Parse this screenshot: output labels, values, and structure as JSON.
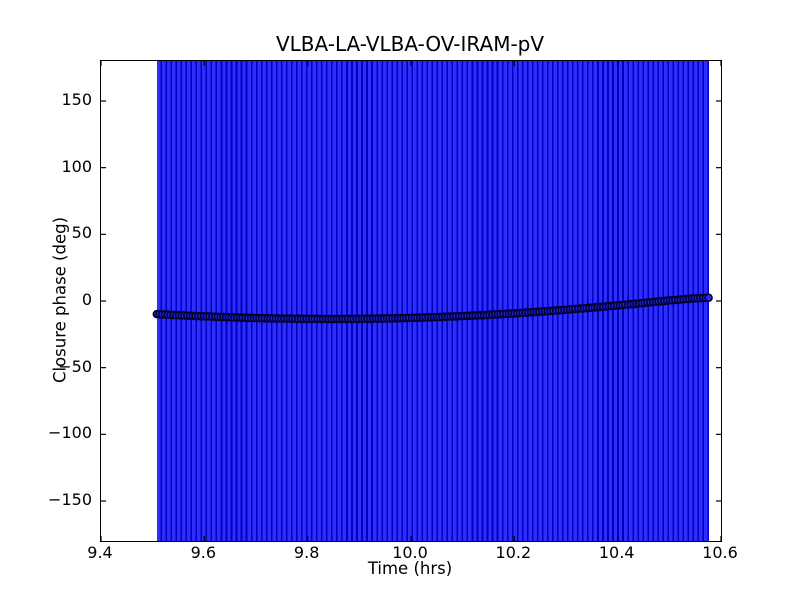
{
  "chart_data": {
    "type": "scatter",
    "title": "VLBA-LA-VLBA-OV-IRAM-pV",
    "xlabel": "Time (hrs)",
    "ylabel": "Closure phase (deg)",
    "xlim": [
      9.4,
      10.6
    ],
    "ylim": [
      -180,
      180
    ],
    "grid": false,
    "legend": null,
    "xticks": [
      {
        "v": 9.4,
        "label": "9.4"
      },
      {
        "v": 9.6,
        "label": "9.6"
      },
      {
        "v": 9.8,
        "label": "9.8"
      },
      {
        "v": 10.0,
        "label": "10.0"
      },
      {
        "v": 10.2,
        "label": "10.2"
      },
      {
        "v": 10.4,
        "label": "10.4"
      },
      {
        "v": 10.6,
        "label": "10.6"
      }
    ],
    "yticks": [
      {
        "v": -150,
        "label": "−150"
      },
      {
        "v": -100,
        "label": "−100"
      },
      {
        "v": -50,
        "label": "−50"
      },
      {
        "v": 0,
        "label": "0"
      },
      {
        "v": 50,
        "label": "50"
      },
      {
        "v": 100,
        "label": "100"
      },
      {
        "v": 150,
        "label": "150"
      }
    ],
    "errorbars": {
      "t_range": [
        9.508,
        10.576
      ],
      "span_deg": [
        -180,
        180
      ],
      "n_bars": 110,
      "color": "#2d2dfc",
      "overlap_color": "#0101bf"
    },
    "series": [
      {
        "name": "closure phase",
        "marker": "circle",
        "marker_face": "#1f1ff0",
        "marker_edge": "#000022",
        "last_marker_face": "#2a2af5",
        "n_points": 200,
        "t_range": [
          9.508,
          10.576
        ],
        "curve_t": [
          9.508,
          9.55,
          9.6,
          9.65,
          9.7,
          9.75,
          9.8,
          9.85,
          9.9,
          9.95,
          10.0,
          10.05,
          10.1,
          10.15,
          10.2,
          10.25,
          10.3,
          10.35,
          10.4,
          10.45,
          10.5,
          10.55,
          10.576
        ],
        "curve_deg": [
          -9.8,
          -10.7,
          -11.5,
          -12.2,
          -12.8,
          -13.2,
          -13.4,
          -13.5,
          -13.4,
          -13.1,
          -12.7,
          -12.1,
          -11.3,
          -10.4,
          -9.3,
          -8.0,
          -6.6,
          -5.0,
          -3.3,
          -1.5,
          0.4,
          2.0,
          2.4
        ]
      }
    ]
  }
}
